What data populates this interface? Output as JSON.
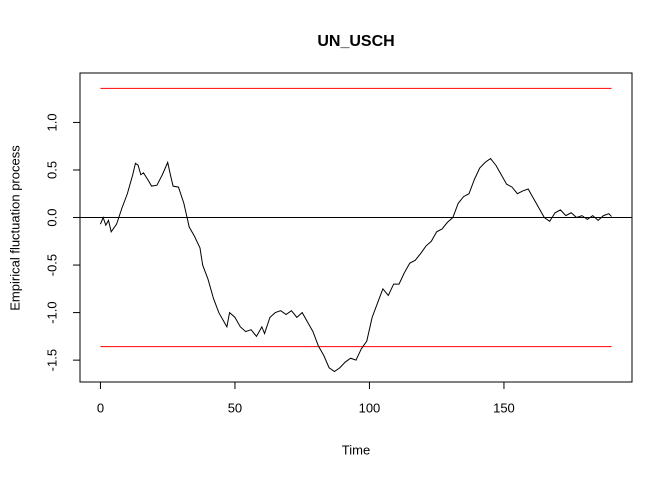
{
  "chart_data": {
    "type": "line",
    "title": "UN_USCH",
    "xlabel": "Time",
    "ylabel": "Empirical fluctuation process",
    "x": [
      0,
      1,
      2,
      3,
      4,
      6,
      8,
      10,
      12,
      13,
      14,
      15,
      16,
      18,
      19,
      21,
      23,
      25,
      26,
      27,
      29,
      31,
      33,
      35,
      37,
      38,
      40,
      42,
      44,
      46,
      47,
      48,
      50,
      52,
      54,
      56,
      58,
      60,
      61,
      63,
      65,
      67,
      69,
      71,
      73,
      75,
      77,
      79,
      81,
      83,
      85,
      87,
      89,
      91,
      93,
      95,
      97,
      99,
      101,
      103,
      105,
      107,
      109,
      111,
      113,
      115,
      117,
      119,
      121,
      123,
      125,
      127,
      129,
      131,
      133,
      135,
      137,
      139,
      141,
      143,
      145,
      147,
      149,
      151,
      153,
      155,
      157,
      159,
      161,
      163,
      165,
      167,
      169,
      171,
      173,
      175,
      177,
      179,
      181,
      183,
      185,
      187,
      189,
      190
    ],
    "series": [
      {
        "name": "UN_USCH",
        "color": "#000000",
        "values": [
          -0.07,
          0.0,
          -0.08,
          -0.03,
          -0.15,
          -0.07,
          0.1,
          0.25,
          0.45,
          0.57,
          0.55,
          0.45,
          0.47,
          0.38,
          0.33,
          0.34,
          0.45,
          0.58,
          0.45,
          0.33,
          0.32,
          0.15,
          -0.1,
          -0.2,
          -0.32,
          -0.5,
          -0.65,
          -0.85,
          -1.0,
          -1.1,
          -1.15,
          -1.0,
          -1.05,
          -1.15,
          -1.2,
          -1.18,
          -1.25,
          -1.15,
          -1.22,
          -1.05,
          -1.0,
          -0.98,
          -1.02,
          -0.98,
          -1.05,
          -1.0,
          -1.1,
          -1.2,
          -1.35,
          -1.45,
          -1.58,
          -1.62,
          -1.58,
          -1.52,
          -1.48,
          -1.5,
          -1.38,
          -1.3,
          -1.05,
          -0.9,
          -0.75,
          -0.82,
          -0.7,
          -0.7,
          -0.58,
          -0.48,
          -0.45,
          -0.38,
          -0.3,
          -0.25,
          -0.15,
          -0.12,
          -0.05,
          0.0,
          0.15,
          0.22,
          0.25,
          0.4,
          0.52,
          0.58,
          0.62,
          0.55,
          0.45,
          0.35,
          0.32,
          0.25,
          0.28,
          0.3,
          0.2,
          0.1,
          0.0,
          -0.04,
          0.05,
          0.08,
          0.02,
          0.05,
          0.0,
          0.02,
          -0.02,
          0.02,
          -0.03,
          0.02,
          0.04,
          0.01
        ]
      }
    ],
    "boundary": {
      "values": [
        1.358,
        -1.358
      ],
      "color": "#ff0000"
    },
    "reference_line": 0,
    "xlim": [
      -7.6,
      197.6
    ],
    "ylim": [
      -1.73,
      1.52
    ],
    "xticks": [
      0,
      50,
      100,
      150
    ],
    "yticks": [
      -1.5,
      {
        "value": -1,
        "label": "-1.0"
      },
      -0.5,
      {
        "value": 0,
        "label": "0.0"
      },
      0.5,
      {
        "value": 1,
        "label": "1.0"
      }
    ]
  }
}
